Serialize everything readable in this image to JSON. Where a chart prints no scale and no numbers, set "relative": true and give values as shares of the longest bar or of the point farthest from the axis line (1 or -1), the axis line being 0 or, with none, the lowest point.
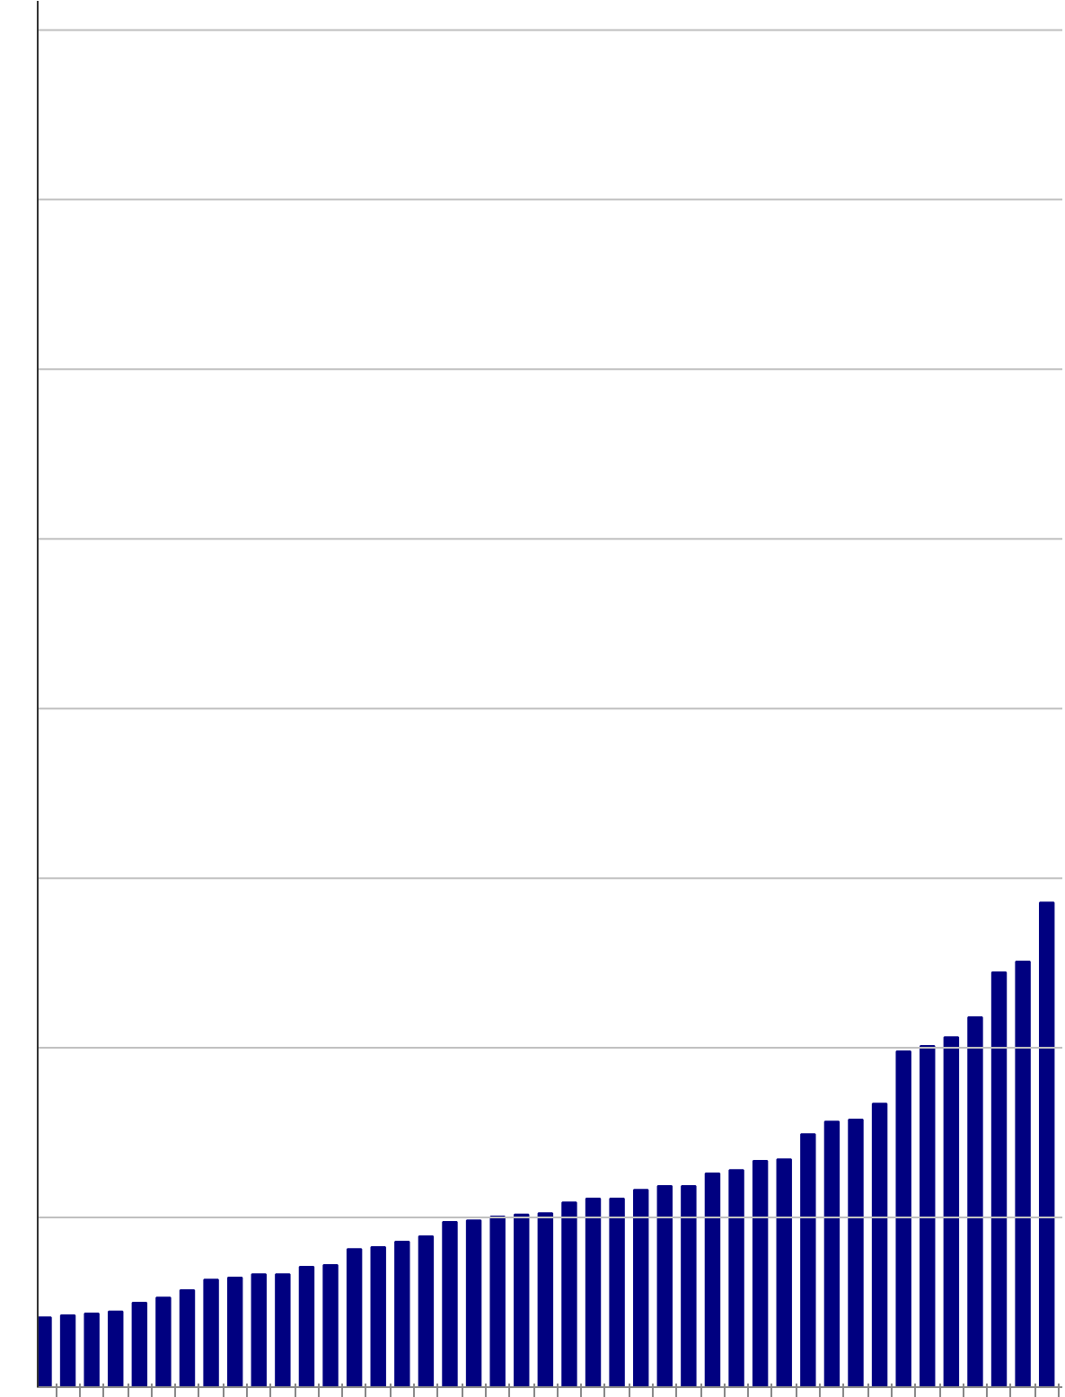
{
  "chart_data": {
    "type": "bar",
    "relative": true,
    "color": "#000080",
    "ref_lines": [
      {
        "axis": "y",
        "value": 0.35,
        "color": "#c0c0c0"
      },
      {
        "axis": "y",
        "value": 0.7,
        "color": "#c0c0c0"
      },
      {
        "axis": "y",
        "value": 1.05,
        "color": "#c0c0c0"
      },
      {
        "axis": "y",
        "value": 1.4,
        "color": "#c0c0c0"
      },
      {
        "axis": "y",
        "value": 1.75,
        "color": "#c0c0c0"
      },
      {
        "axis": "y",
        "value": 2.1,
        "color": "#c0c0c0"
      },
      {
        "axis": "y",
        "value": 2.45,
        "color": "#c0c0c0"
      },
      {
        "axis": "y",
        "value": 2.8,
        "color": "#c0c0c0"
      }
    ],
    "categories": [
      null,
      null,
      null,
      null,
      null,
      null,
      null,
      null,
      null,
      null,
      null,
      null,
      null,
      null,
      null,
      null,
      null,
      null,
      null,
      null,
      null,
      null,
      null,
      null,
      null,
      null,
      null,
      null,
      null,
      null,
      null,
      null,
      null,
      null,
      null,
      null,
      null,
      null,
      null,
      null,
      null,
      null,
      null
    ],
    "values": [
      0.144,
      0.148,
      0.152,
      0.156,
      0.174,
      0.185,
      0.2,
      0.222,
      0.226,
      0.233,
      0.233,
      0.248,
      0.252,
      0.285,
      0.289,
      0.3,
      0.311,
      0.341,
      0.344,
      0.352,
      0.356,
      0.359,
      0.381,
      0.389,
      0.389,
      0.407,
      0.415,
      0.415,
      0.441,
      0.448,
      0.467,
      0.47,
      0.522,
      0.548,
      0.552,
      0.585,
      0.693,
      0.704,
      0.722,
      0.763,
      0.856,
      0.878,
      1.0
    ]
  }
}
